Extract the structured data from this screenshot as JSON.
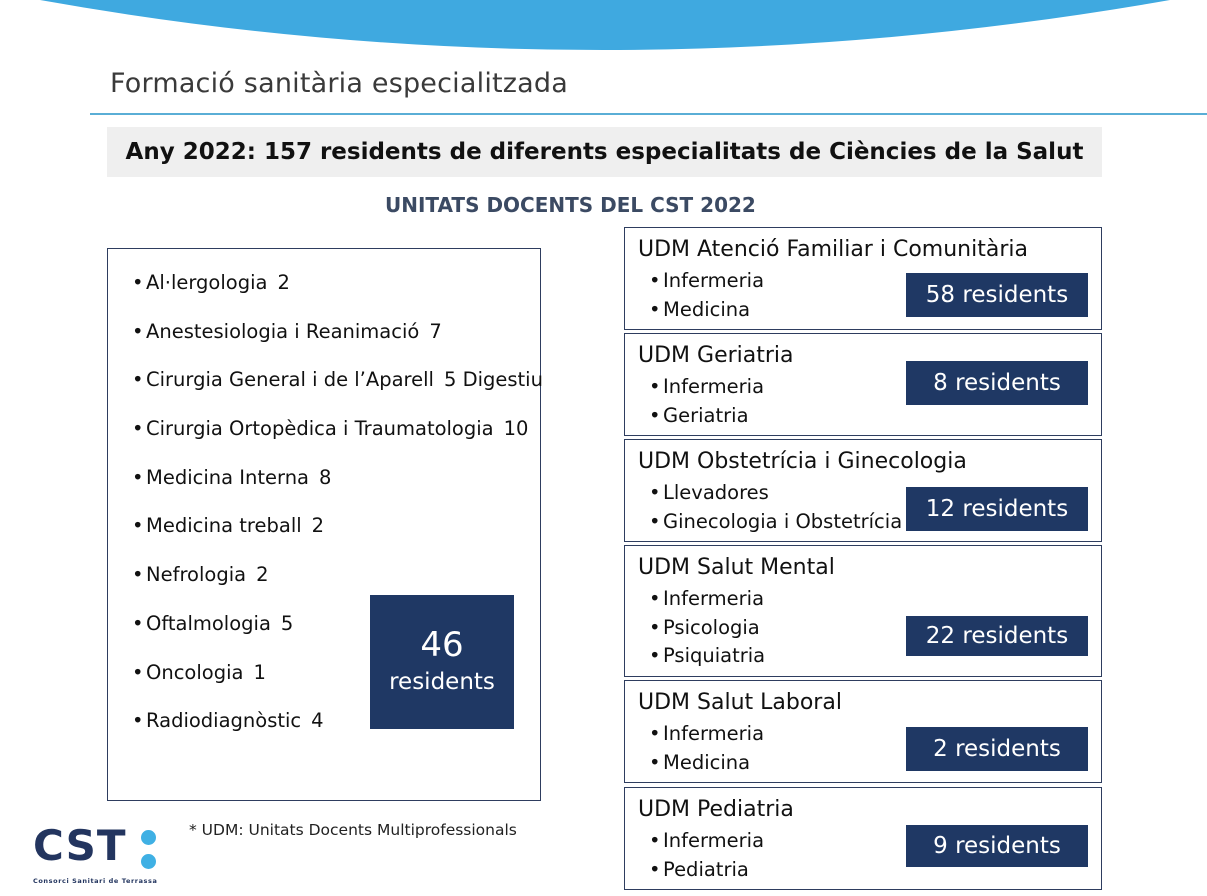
{
  "header": {
    "title": "Formació sanitària especialitzada",
    "banner": "Any 2022: 157 residents de diferents especialitats de Ciències de la Salut",
    "subheading": "UNITATS DOCENTS DEL CST 2022"
  },
  "specialties": {
    "items": [
      {
        "name": "Al·lergologia",
        "count": "2"
      },
      {
        "name": "Anestesiologia i Reanimació",
        "count": "7"
      },
      {
        "name": "Cirurgia General i de l’Aparell",
        "count": "5 Digestiu"
      },
      {
        "name": "Cirurgia Ortopèdica i Traumatologia",
        "count": "10"
      },
      {
        "name": "Medicina Interna",
        "count": "8"
      },
      {
        "name": "Medicina treball",
        "count": "2"
      },
      {
        "name": "Nefrologia",
        "count": "2"
      },
      {
        "name": "Oftalmologia",
        "count": "5"
      },
      {
        "name": "Oncologia",
        "count": "1"
      },
      {
        "name": "Radiodiagnòstic",
        "count": "4"
      }
    ],
    "total_number": "46",
    "total_label": "residents"
  },
  "udms": [
    {
      "title": "UDM Atenció Familiar i Comunitària",
      "items": [
        "Infermeria",
        "Medicina"
      ],
      "badge": "58 residents"
    },
    {
      "title": "UDM Geriatria",
      "items": [
        "Infermeria",
        "Geriatria"
      ],
      "badge": "8 residents"
    },
    {
      "title": "UDM Obstetrícia i Ginecologia",
      "items": [
        "Llevadores",
        "Ginecologia i Obstetrícia"
      ],
      "badge": "12 residents"
    },
    {
      "title": "UDM Salut Mental",
      "items": [
        "Infermeria",
        "Psicologia",
        "Psiquiatria"
      ],
      "badge": "22 residents"
    },
    {
      "title": "UDM Salut Laboral",
      "items": [
        "Infermeria",
        "Medicina"
      ],
      "badge": "2 residents"
    },
    {
      "title": "UDM Pediatria",
      "items": [
        "Infermeria",
        "Pediatria"
      ],
      "badge": "9 residents"
    }
  ],
  "footnote": "* UDM: Unitats Docents Multiprofessionals",
  "logo": {
    "text": "CST",
    "subtitle": "Consorci Sanitari de Terrassa"
  },
  "colors": {
    "accent_blue": "#3fa9e0",
    "navy": "#1f3864",
    "banner_bg": "#efefef"
  }
}
